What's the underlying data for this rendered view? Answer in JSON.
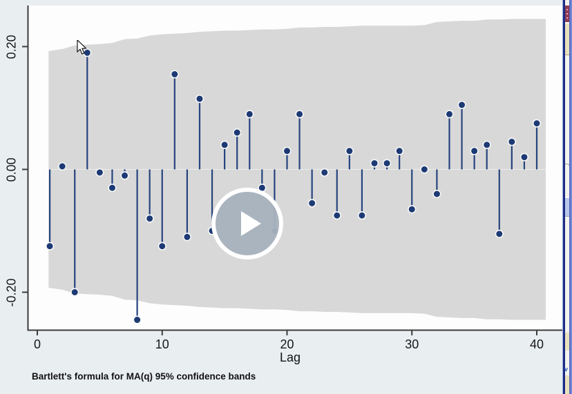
{
  "app": {
    "kind": "video frame of a Stata autocorrelogram window",
    "note_text": "Bartlett's formula for MA(q) 95% confidence bands"
  },
  "chart_data": {
    "type": "stem",
    "subtype": "autocorrelation (Stata ac) lollipop plot with confidence band",
    "title": "",
    "xlabel": "Lag",
    "ylabel": "",
    "note": "Bartlett's formula for MA(q) 95% confidence bands",
    "grid": false,
    "legend": "none",
    "xlim": [
      -0.8,
      41.9
    ],
    "ylim": [
      -0.27,
      0.27
    ],
    "x_ticks": [
      0,
      10,
      20,
      30,
      40
    ],
    "x_tick_labels": [
      "0",
      "10",
      "20",
      "30",
      "40"
    ],
    "y_ticks": [
      0.2,
      0.0,
      -0.2
    ],
    "y_tick_labels": [
      "0.20",
      "0.00",
      "-0.20"
    ],
    "lags": [
      1,
      2,
      3,
      4,
      5,
      6,
      7,
      8,
      9,
      10,
      11,
      12,
      13,
      14,
      15,
      16,
      17,
      18,
      19,
      20,
      21,
      22,
      23,
      24,
      25,
      26,
      27,
      28,
      29,
      30,
      31,
      32,
      33,
      34,
      35,
      36,
      37,
      38,
      39,
      40
    ],
    "autocorrelations": [
      -0.125,
      0.005,
      -0.2,
      0.19,
      -0.005,
      -0.03,
      -0.01,
      -0.245,
      -0.08,
      -0.125,
      0.155,
      -0.11,
      0.115,
      -0.1,
      0.04,
      0.06,
      0.09,
      -0.03,
      -0.1,
      0.03,
      0.09,
      -0.055,
      -0.005,
      -0.075,
      0.03,
      -0.075,
      0.01,
      0.01,
      0.03,
      -0.065,
      0.0,
      -0.04,
      0.09,
      0.105,
      0.03,
      0.04,
      -0.105,
      0.045,
      0.02,
      0.075
    ],
    "confidence_band": {
      "label": "95% confidence band (Bartlett MA(q))",
      "symmetric": true,
      "start_lag": 0.9,
      "end_lag": 40.72,
      "half_widths": [
        0.193,
        0.196,
        0.202,
        0.203,
        0.204,
        0.206,
        0.212,
        0.213,
        0.218,
        0.22,
        0.221,
        0.222,
        0.224,
        0.225,
        0.226,
        0.226,
        0.227,
        0.228,
        0.228,
        0.229,
        0.231,
        0.231,
        0.232,
        0.232,
        0.233,
        0.234,
        0.234,
        0.234,
        0.234,
        0.234,
        0.235,
        0.24,
        0.241,
        0.242,
        0.242,
        0.244,
        0.244,
        0.245,
        0.245,
        0.245
      ]
    }
  },
  "overlay": {
    "play_button": "play"
  },
  "colors": {
    "background": "#e9eef1",
    "plot_background": "#fdfdfd",
    "band_gray": "#d8d8d8",
    "stem_navy": "#26437e",
    "dot_navy": "#1d3a74",
    "dot_halo": "#f7f8f8",
    "axis": "#3c3c3c",
    "play_circle": "#a8b2be",
    "play_ring": "#ffffff",
    "frame_blue": "#4c60ba"
  }
}
